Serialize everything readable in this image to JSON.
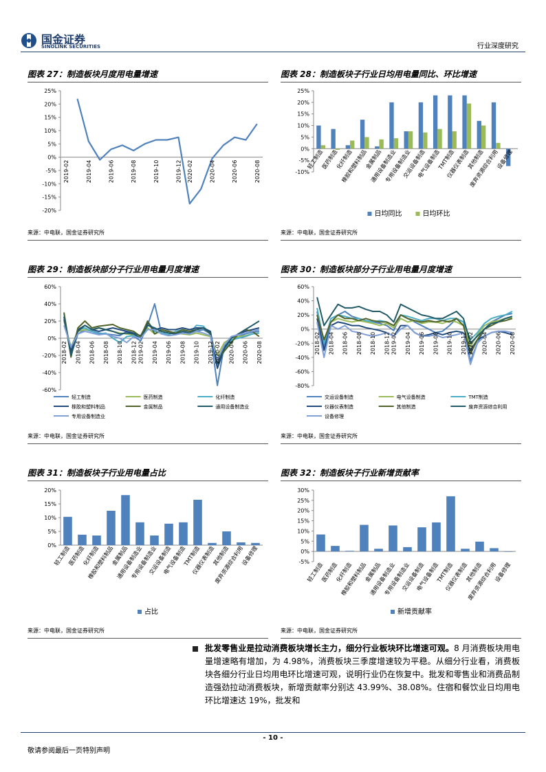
{
  "header": {
    "logo_cn": "国金证券",
    "logo_en": "SINOLINK SECURITIES",
    "section": "行业深度研究"
  },
  "chart_data": [
    {
      "type": "line",
      "title": "图表 27：制造板块月度用电量增速",
      "source": "来源：中电联，国金证券研究所",
      "categories": [
        "2019-02",
        null,
        "2019-04",
        null,
        "2019-06",
        null,
        "2019-08",
        null,
        "2019-10",
        null,
        "2019-12",
        "2020-02",
        null,
        "2020-04",
        null,
        "2020-06",
        null,
        "2020-08"
      ],
      "values": [
        null,
        22,
        6,
        -1,
        3,
        4.5,
        2.5,
        5,
        6.5,
        6.5,
        7.5,
        -17.5,
        -12,
        -0.5,
        4.5,
        7.5,
        6.5,
        12.5
      ],
      "color": "#4f81bd",
      "ylim": [
        -20,
        25
      ],
      "yticks": [
        {
          "value": -20,
          "label": "-20%"
        },
        {
          "value": -15,
          "label": "-15%"
        },
        {
          "value": -10,
          "label": "-10%"
        },
        {
          "value": -5,
          "label": "-5%"
        },
        {
          "value": 0,
          "label": "0%"
        },
        {
          "value": 5,
          "label": "5%"
        },
        {
          "value": 10,
          "label": "10%"
        },
        {
          "value": 15,
          "label": "15%"
        },
        {
          "value": 20,
          "label": "20%"
        },
        {
          "value": 25,
          "label": "25%"
        }
      ]
    },
    {
      "type": "bar",
      "title": "图表 28：制造板块子行业日均用电量同比、环比增速",
      "source": "来源：中电联，国金证券研究所",
      "categories": [
        "轻工制造",
        "医药制造",
        "化纤制造",
        "橡胶和塑料制品",
        "金属制品",
        "通用设备制造业",
        "专用设备制造业",
        "交运设备制造",
        "电气设备制造",
        "TMT制造",
        "仪器仪表制造",
        "其他制造",
        "废弃资源综合利用",
        "设备修理"
      ],
      "series": [
        {
          "name": "日均同比",
          "color": "#4f81bd",
          "values": [
            10,
            8.5,
            1.5,
            12.5,
            1,
            20,
            7.5,
            20,
            23,
            23,
            23,
            12,
            20,
            -7.5
          ]
        },
        {
          "name": "日均环比",
          "color": "#9bbb59",
          "values": [
            1.5,
            -0.5,
            3.5,
            5,
            4,
            4.5,
            7.5,
            7,
            8.5,
            7.5,
            19.5,
            10,
            2.5,
            0
          ]
        }
      ],
      "ylim": [
        -10,
        25
      ],
      "yticks": [
        {
          "value": -10,
          "label": "-10%"
        },
        {
          "value": -5,
          "label": "-5%"
        },
        {
          "value": 0,
          "label": "0%"
        },
        {
          "value": 5,
          "label": "5%"
        },
        {
          "value": 10,
          "label": "10%"
        },
        {
          "value": 15,
          "label": "15%"
        },
        {
          "value": 20,
          "label": "20%"
        },
        {
          "value": 25,
          "label": "25%"
        }
      ]
    },
    {
      "type": "line",
      "title": "图表 29：制造板块部分子行业用电量月度增速",
      "source": "来源：中电联，国金证券研究所",
      "categories": [
        "2018-02",
        null,
        "2018-04",
        null,
        "2018-06",
        null,
        "2018-08",
        null,
        "2018-10",
        null,
        "2018-12",
        "2019-02",
        null,
        "2019-04",
        null,
        "2019-06",
        null,
        "2019-08",
        null,
        "2019-10",
        null,
        "2019-12",
        "2020-02",
        null,
        "2020-04",
        null,
        "2020-06",
        null,
        "2020-08"
      ],
      "series": [
        {
          "name": "轻工制造",
          "color": "#4f81bd",
          "values": [
            25,
            -20,
            5,
            10,
            8,
            6,
            5,
            4,
            3,
            8,
            2,
            -3,
            15,
            40,
            5,
            8,
            6,
            7,
            5,
            8,
            10,
            5,
            -55,
            -8,
            -3,
            2,
            5,
            7,
            8
          ]
        },
        {
          "name": "医药制造",
          "color": "#9bbb59",
          "values": [
            20,
            -10,
            8,
            10,
            9,
            12,
            10,
            8,
            6,
            5,
            4,
            2,
            12,
            5,
            8,
            6,
            6,
            5,
            4,
            6,
            4,
            2,
            -20,
            -5,
            0,
            2,
            3,
            5,
            6
          ]
        },
        {
          "name": "化纤制造",
          "color": "#4bacc6",
          "values": [
            28,
            -18,
            10,
            12,
            8,
            5,
            6,
            0,
            -5,
            2,
            3,
            1,
            20,
            8,
            6,
            4,
            8,
            10,
            6,
            15,
            14,
            4,
            -30,
            -15,
            -2,
            0,
            2,
            5,
            6
          ]
        },
        {
          "name": "橡胶和塑料制品",
          "color": "#1f497d",
          "values": [
            22,
            -15,
            10,
            15,
            10,
            8,
            10,
            12,
            10,
            8,
            6,
            3,
            18,
            10,
            12,
            10,
            10,
            12,
            10,
            12,
            12,
            8,
            -35,
            -12,
            0,
            5,
            8,
            10,
            12
          ]
        },
        {
          "name": "金属制品",
          "color": "#4f6228",
          "values": [
            30,
            -22,
            12,
            20,
            12,
            14,
            15,
            16,
            12,
            10,
            8,
            2,
            20,
            5,
            10,
            8,
            6,
            10,
            8,
            10,
            12,
            5,
            -25,
            -15,
            -5,
            5,
            10,
            8,
            2
          ]
        },
        {
          "name": "通用设备制造业",
          "color": "#215968",
          "values": [
            25,
            -20,
            8,
            15,
            10,
            12,
            10,
            8,
            5,
            6,
            5,
            0,
            15,
            12,
            8,
            6,
            5,
            8,
            6,
            10,
            12,
            6,
            -30,
            -10,
            0,
            5,
            10,
            15,
            20
          ]
        },
        {
          "name": "专用设备制造业",
          "color": "#7f9fd6",
          "values": [
            15,
            -10,
            5,
            8,
            6,
            4,
            5,
            2,
            0,
            -5,
            2,
            0,
            10,
            10,
            5,
            3,
            4,
            6,
            5,
            8,
            6,
            3,
            -25,
            -8,
            2,
            4,
            6,
            8,
            10
          ]
        }
      ],
      "ylim": [
        -60,
        60
      ],
      "yticks": [
        {
          "value": -60,
          "label": "-60%"
        },
        {
          "value": -40,
          "label": "-40%"
        },
        {
          "value": -20,
          "label": "-20%"
        },
        {
          "value": 0,
          "label": "0%"
        },
        {
          "value": 20,
          "label": "20%"
        },
        {
          "value": 40,
          "label": "40%"
        },
        {
          "value": 60,
          "label": "60%"
        }
      ]
    },
    {
      "type": "line",
      "title": "图表 30：制造板块部分子行业用电量月度增速",
      "source": "来源：中电联，国金证券研究所",
      "categories": [
        "2018-02",
        null,
        "2018-04",
        null,
        "2018-06",
        null,
        "2018-08",
        null,
        "2018-10",
        null,
        "2018-12",
        "2019-02",
        null,
        "2019-04",
        null,
        "2019-06",
        null,
        "2019-08",
        null,
        "2019-10",
        null,
        "2019-12",
        "2020-02",
        null,
        "2020-04",
        null,
        "2020-06",
        null,
        "2020-08"
      ],
      "series": [
        {
          "name": "交运设备制造",
          "color": "#4f81bd",
          "values": [
            25,
            -25,
            10,
            20,
            25,
            18,
            15,
            12,
            10,
            8,
            5,
            -2,
            20,
            15,
            10,
            5,
            0,
            -5,
            -3,
            5,
            15,
            10,
            -45,
            -20,
            0,
            10,
            15,
            20,
            22
          ]
        },
        {
          "name": "电气设备制造",
          "color": "#9bbb59",
          "values": [
            20,
            -15,
            10,
            15,
            12,
            10,
            12,
            10,
            8,
            5,
            8,
            2,
            15,
            10,
            12,
            8,
            10,
            10,
            8,
            12,
            10,
            5,
            -25,
            -8,
            5,
            10,
            12,
            15,
            16
          ]
        },
        {
          "name": "TMT制造",
          "color": "#4bacc6",
          "values": [
            30,
            -20,
            15,
            20,
            18,
            15,
            15,
            12,
            10,
            12,
            10,
            5,
            20,
            18,
            15,
            12,
            15,
            15,
            12,
            15,
            15,
            10,
            -15,
            -5,
            8,
            15,
            18,
            20,
            25
          ]
        },
        {
          "name": "仪器仪表制造",
          "color": "#1f497d",
          "values": [
            15,
            -30,
            5,
            10,
            8,
            5,
            5,
            2,
            0,
            -2,
            -5,
            -10,
            5,
            5,
            -5,
            -10,
            -8,
            -5,
            -8,
            -5,
            -3,
            -5,
            -30,
            -15,
            -10,
            -5,
            -3,
            -5,
            -8
          ]
        },
        {
          "name": "其他制造",
          "color": "#4f6228",
          "values": [
            20,
            -15,
            10,
            20,
            15,
            15,
            12,
            15,
            12,
            10,
            10,
            5,
            20,
            15,
            12,
            10,
            12,
            10,
            12,
            10,
            15,
            5,
            -35,
            -15,
            0,
            5,
            10,
            12,
            15
          ]
        },
        {
          "name": "废弃资源综合利用",
          "color": "#215968",
          "values": [
            45,
            5,
            20,
            35,
            30,
            30,
            32,
            28,
            25,
            25,
            20,
            10,
            35,
            30,
            25,
            20,
            18,
            15,
            15,
            20,
            25,
            15,
            -20,
            -10,
            0,
            8,
            10,
            15,
            18
          ]
        },
        {
          "name": "设备修理",
          "color": "#7f9fd6",
          "values": [
            10,
            -40,
            5,
            0,
            5,
            -3,
            -5,
            -8,
            -10,
            -8,
            -5,
            -10,
            0,
            5,
            -5,
            -10,
            -10,
            -8,
            -12,
            -10,
            -8,
            -5,
            -50,
            -20,
            -10,
            -5,
            -3,
            -3,
            -5
          ]
        }
      ],
      "ylim": [
        -80,
        60
      ],
      "yticks": [
        {
          "value": -80,
          "label": "-80%"
        },
        {
          "value": -60,
          "label": "-60%"
        },
        {
          "value": -40,
          "label": "-40%"
        },
        {
          "value": -20,
          "label": "-20%"
        },
        {
          "value": 0,
          "label": "0%"
        },
        {
          "value": 20,
          "label": "20%"
        },
        {
          "value": 40,
          "label": "40%"
        },
        {
          "value": 60,
          "label": "60%"
        }
      ]
    },
    {
      "type": "bar",
      "title": "图表 31：制造板块子行业用电量占比",
      "source": "来源：中电联，国金证券研究所",
      "categories": [
        "轻工制造",
        "医药制造",
        "化纤制造",
        "橡胶和塑料制品",
        "金属制品",
        "通用设备制造业",
        "专用设备制造业",
        "交运设备制造",
        "电气设备制造",
        "TMT制造",
        "仪器仪表制造",
        "其他制造",
        "废弃资源综合利用",
        "设备修理"
      ],
      "series": [
        {
          "name": "占比",
          "color": "#4f81bd",
          "values": [
            10.3,
            3.8,
            3.5,
            12.5,
            18.2,
            8.3,
            3.5,
            7.8,
            8.3,
            16.5,
            0.8,
            5,
            1,
            0.8
          ]
        }
      ],
      "ylim": [
        0,
        20
      ],
      "yticks": [
        {
          "value": 0,
          "label": "0%"
        },
        {
          "value": 5,
          "label": "5%"
        },
        {
          "value": 10,
          "label": "10%"
        },
        {
          "value": 15,
          "label": "15%"
        },
        {
          "value": 20,
          "label": "20%"
        }
      ]
    },
    {
      "type": "bar",
      "title": "图表 32：制造板块子行业新增贡献率",
      "source": "来源：中电联，国金证券研究所",
      "categories": [
        "轻工制造",
        "医药制造",
        "化纤制造",
        "橡胶和塑料制品",
        "金属制品",
        "通用设备制造业",
        "专用设备制造业",
        "交运设备制造",
        "电气设备制造",
        "TMT制造",
        "仪器仪表制造",
        "其他制造",
        "废弃资源综合利用",
        "设备修理"
      ],
      "series": [
        {
          "name": "新增贡献率",
          "color": "#4f81bd",
          "values": [
            8.3,
            2.7,
            0.3,
            13,
            1.3,
            12.7,
            2.1,
            11.8,
            14.2,
            27,
            1.3,
            4.8,
            1.6,
            -0.2
          ]
        }
      ],
      "ylim": [
        -5,
        30
      ],
      "yticks": [
        {
          "value": -5,
          "label": "-5%"
        },
        {
          "value": 0,
          "label": "0%"
        },
        {
          "value": 5,
          "label": "5%"
        },
        {
          "value": 10,
          "label": "10%"
        },
        {
          "value": 15,
          "label": "15%"
        },
        {
          "value": 20,
          "label": "20%"
        },
        {
          "value": 25,
          "label": "25%"
        },
        {
          "value": 30,
          "label": "30%"
        }
      ]
    }
  ],
  "body": {
    "lead": "批发零售业是拉动消费板块增长主力，细分行业板块环比增速可观。",
    "text": "8 月消费板块用电量增速略有增加，为 4.98%，消费板块三季度增速较为平稳。从细分行业看，消费板块各细分行业日均用电环比增速可观，说明行业仍在恢复中。批发和零售业和消费品制造强劲拉动消费板块，新增贡献率分别达 43.99%、38.08%。住宿和餐饮业日均用电环比增速达 19%，批发和"
  },
  "footer": {
    "page": "- 10 -",
    "note": "敬请参阅最后一页特别声明"
  }
}
